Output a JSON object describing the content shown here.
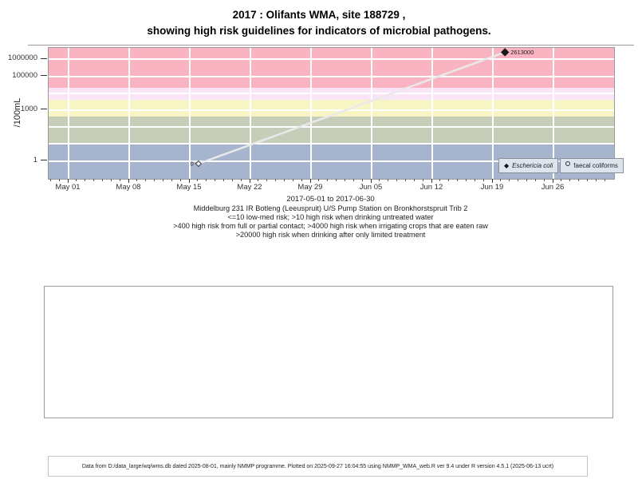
{
  "chart_data": {
    "type": "line",
    "title_line1": "2017 : Olifants WMA, site 188729 ,",
    "title_line2": "showing high risk guidelines for indicators of microbial pathogens.",
    "ylabel": "/100mL",
    "xlabel": "2017-05-01 to 2017-06-30",
    "y_scale": "log10",
    "ylim": [
      0.1,
      4500000
    ],
    "grid": true,
    "legend_position": "bottom-right-inside",
    "y_ticks": [
      {
        "value": 1,
        "label": "1"
      },
      {
        "value": 1000,
        "label": "1000"
      },
      {
        "value": 100000,
        "label": "100000"
      },
      {
        "value": 1000000,
        "label": "1000000"
      }
    ],
    "y_gridline_values": [
      1,
      10,
      100,
      1000,
      10000,
      100000,
      1000000
    ],
    "x_ticks": [
      {
        "day": 0,
        "label": "May 01"
      },
      {
        "day": 7,
        "label": "May 08"
      },
      {
        "day": 14,
        "label": "May 15"
      },
      {
        "day": 21,
        "label": "May 22"
      },
      {
        "day": 28,
        "label": "May 29"
      },
      {
        "day": 35,
        "label": "Jun 05"
      },
      {
        "day": 42,
        "label": "Jun 12"
      },
      {
        "day": 49,
        "label": "Jun 19"
      },
      {
        "day": 56,
        "label": "Jun 26"
      }
    ],
    "minor_tick_every_days": 1,
    "bands": [
      {
        "name": "low-med-risk",
        "meaning": "<=10 low-med risk",
        "from": 0.05,
        "to": 10,
        "color": "#A6B4CD"
      },
      {
        "name": "high-risk-drinking-untreated",
        "meaning": ">10 high risk when drinking untreated water",
        "from": 10,
        "to": 400,
        "color": "#C6CEBA"
      },
      {
        "name": "high-risk-contact",
        "meaning": ">400 high risk from full or partial contact",
        "from": 400,
        "to": 4000,
        "color": "#F7F5C4"
      },
      {
        "name": "high-risk-irrigation",
        "meaning": ">4000 high risk when irrigating crops that are eaten raw",
        "from": 4000,
        "to": 20000,
        "color": "#FAE4F8"
      },
      {
        "name": "high-risk-limited-treatment",
        "meaning": ">20000 high risk when drinking after only limited treatment",
        "from": 20000,
        "to": 5000000,
        "color": "#FAB4C1"
      }
    ],
    "series": [
      {
        "name": "Eschericia coli",
        "marker": "filled-diamond",
        "values": [
          {
            "date": "2017-05-16",
            "value": 0
          },
          {
            "date": "2017-06-20",
            "value": 2613000
          }
        ]
      },
      {
        "name": "faecal coliforms",
        "marker": "open-circle",
        "values": [
          {
            "date": "2017-05-16",
            "value": 0
          }
        ]
      }
    ],
    "drawn_line": {
      "from_day": 15.0,
      "from_plot_value": 0.68,
      "to_day": 50.4,
      "to_plot_value": 2613000,
      "color": "#E9E9E9"
    },
    "drawn_points": [
      {
        "day": 15.0,
        "plot_value": 0.68,
        "marker": "open-diamond",
        "label": "0",
        "label_side": "left"
      },
      {
        "day": 50.4,
        "plot_value": 2613000,
        "marker": "filled-diamond",
        "label": "2613000",
        "label_side": "right"
      }
    ],
    "legend": [
      {
        "marker": "filled-diamond",
        "label": "Eschericia coli"
      },
      {
        "marker": "open-circle",
        "label": "faecal coliforms"
      }
    ],
    "captions": [
      "Middelburg 231 IR Botleng (Leeuspruit) U/S Pump Station on Bronkhorstspruit Trib 2",
      "<=10 low-med risk; >10 high risk when drinking untreated water",
      ">400 high risk from full or partial contact; >4000 high risk when irrigating crops that are eaten raw",
      ">20000 high risk when drinking after only limited treatment"
    ]
  },
  "footer": {
    "text": "Data from D:/data_large/wq/wms.db dated 2025-08-01, mainly NMMP programme. Plotted on 2025-09-27 16:04:55 using NMMP_WMA_web.R ver 9.4 under R version 4.5.1 (2025-06-13 ucrt)"
  }
}
